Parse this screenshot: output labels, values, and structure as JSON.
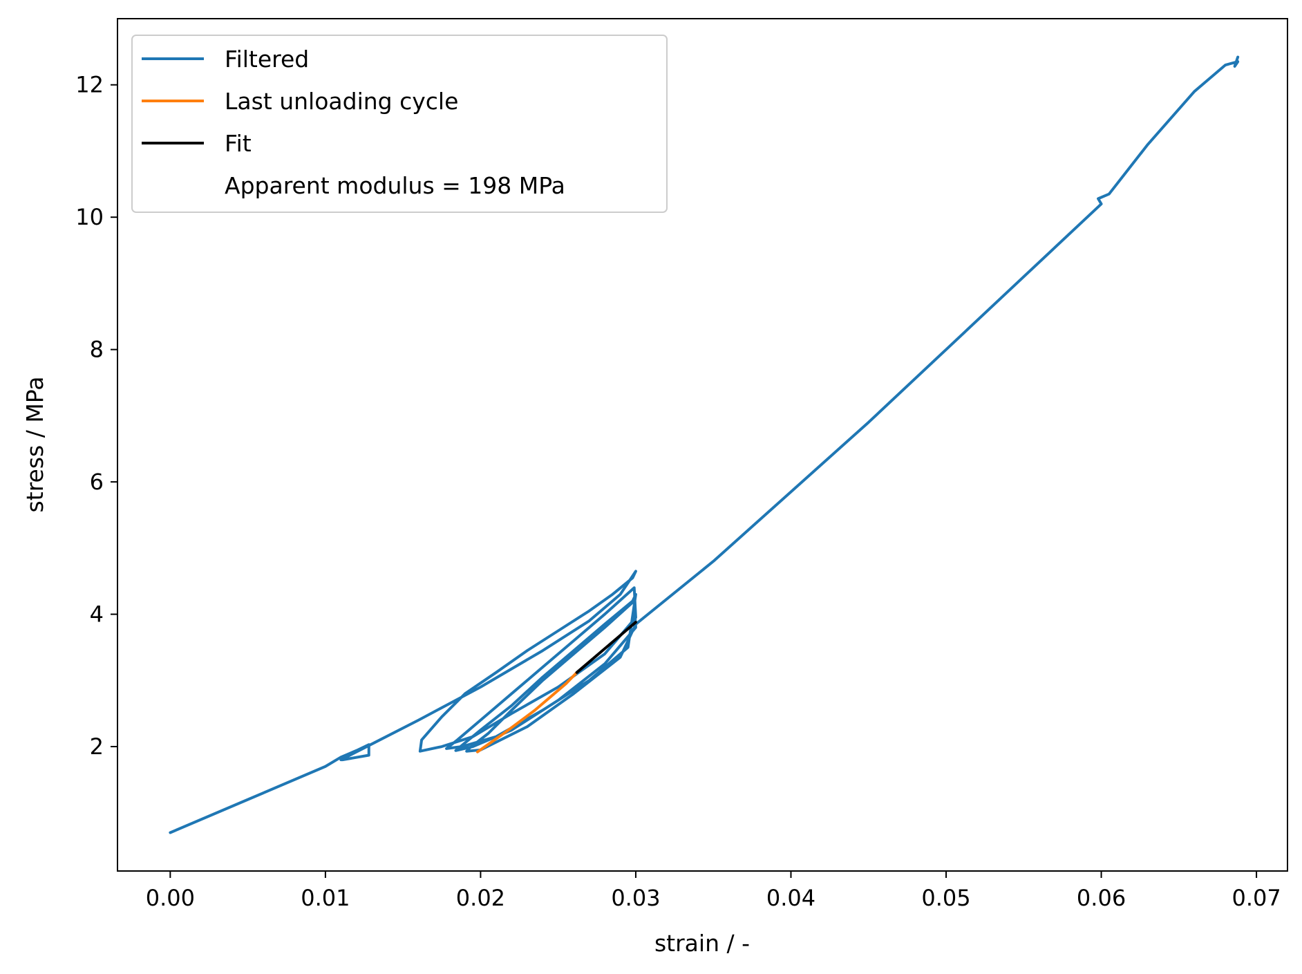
{
  "chart_data": {
    "type": "line",
    "title": "",
    "xlabel": "strain / -",
    "ylabel": "stress / MPa",
    "xlim": [
      -0.0034,
      0.072
    ],
    "ylim": [
      0.12,
      13.0
    ],
    "xticks": [
      0.0,
      0.01,
      0.02,
      0.03,
      0.04,
      0.05,
      0.06,
      0.07
    ],
    "xtick_labels": [
      "0.00",
      "0.01",
      "0.02",
      "0.03",
      "0.04",
      "0.05",
      "0.06",
      "0.07"
    ],
    "yticks": [
      2,
      4,
      6,
      8,
      10,
      12
    ],
    "ytick_labels": [
      "2",
      "4",
      "6",
      "8",
      "10",
      "12"
    ],
    "grid": false,
    "legend_position": "top-left",
    "legend": [
      {
        "label": "Filtered",
        "color": "#1f77b4",
        "marker": "line"
      },
      {
        "label": "Last unloading cycle",
        "color": "#ff7f0e",
        "marker": "line"
      },
      {
        "label": "Fit",
        "color": "#000000",
        "marker": "line"
      },
      {
        "label": "Apparent modulus = 198 MPa",
        "color": "",
        "marker": "none"
      }
    ],
    "series": [
      {
        "name": "Filtered",
        "color": "#1f77b4",
        "x": [
          0.0,
          0.005,
          0.01,
          0.011,
          0.012,
          0.0128,
          0.0128,
          0.0111,
          0.011,
          0.0125,
          0.0135,
          0.016,
          0.02,
          0.024,
          0.027,
          0.029,
          0.03,
          0.0298,
          0.0285,
          0.027,
          0.025,
          0.023,
          0.021,
          0.019,
          0.0175,
          0.0162,
          0.0161,
          0.0175,
          0.0195,
          0.022,
          0.025,
          0.028,
          0.03,
          0.0299,
          0.028,
          0.026,
          0.024,
          0.022,
          0.02,
          0.0185,
          0.0178,
          0.0188,
          0.021,
          0.024,
          0.027,
          0.0295,
          0.03,
          0.0298,
          0.028,
          0.026,
          0.024,
          0.022,
          0.02,
          0.0186,
          0.0184,
          0.0195,
          0.022,
          0.025,
          0.028,
          0.03,
          0.0299,
          0.028,
          0.026,
          0.024,
          0.022,
          0.0205,
          0.0193,
          0.0191,
          0.02,
          0.023,
          0.026,
          0.029,
          0.03,
          0.035,
          0.04,
          0.045,
          0.05,
          0.055,
          0.06,
          0.0598,
          0.0605,
          0.063,
          0.066,
          0.068,
          0.0688,
          0.0686,
          0.0688
        ],
        "y": [
          0.7,
          1.2,
          1.7,
          1.84,
          1.94,
          2.03,
          1.87,
          1.8,
          1.8,
          1.98,
          2.1,
          2.4,
          2.9,
          3.45,
          3.9,
          4.3,
          4.65,
          4.55,
          4.3,
          4.05,
          3.75,
          3.45,
          3.12,
          2.8,
          2.45,
          2.1,
          1.93,
          2.0,
          2.15,
          2.5,
          2.9,
          3.4,
          3.95,
          4.4,
          4.0,
          3.6,
          3.2,
          2.8,
          2.4,
          2.1,
          1.97,
          2.0,
          2.15,
          2.55,
          3.0,
          3.5,
          4.3,
          4.2,
          3.85,
          3.45,
          3.05,
          2.62,
          2.25,
          1.98,
          1.94,
          2.0,
          2.25,
          2.7,
          3.25,
          3.8,
          4.2,
          3.8,
          3.4,
          3.0,
          2.55,
          2.2,
          1.98,
          1.93,
          1.95,
          2.3,
          2.8,
          3.35,
          3.85,
          4.8,
          5.85,
          6.9,
          8.0,
          9.1,
          10.2,
          10.28,
          10.35,
          11.1,
          11.9,
          12.3,
          12.35,
          12.28,
          12.42
        ]
      },
      {
        "name": "Last unloading cycle",
        "color": "#ff7f0e",
        "x": [
          0.0198,
          0.0215,
          0.0235,
          0.0255,
          0.0262
        ],
        "y": [
          1.92,
          2.2,
          2.55,
          2.95,
          3.12
        ]
      },
      {
        "name": "Fit",
        "color": "#000000",
        "x": [
          0.0262,
          0.028,
          0.03
        ],
        "y": [
          3.12,
          3.48,
          3.88
        ]
      }
    ]
  }
}
